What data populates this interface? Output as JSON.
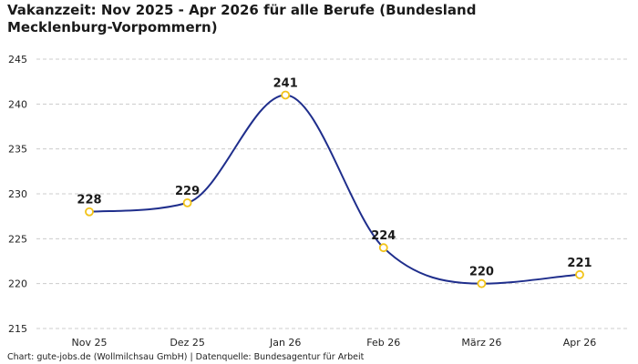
{
  "title": "Vakanzzeit: Nov 2025 - Apr 2026 für alle Berufe (Bundesland Mecklenburg-Vorpommern)",
  "footer": "Chart: gute-jobs.de (Wollmilchsau GmbH) | Datenquelle: Bundesagentur für Arbeit",
  "colors": {
    "line": "#1f2e8c",
    "marker_stroke": "#f2c318",
    "marker_fill": "#ffffff",
    "grid": "#cccccc"
  },
  "chart_data": {
    "type": "line",
    "title": "Vakanzzeit: Nov 2025 - Apr 2026 für alle Berufe (Bundesland Mecklenburg-Vorpommern)",
    "xlabel": "",
    "ylabel": "",
    "categories": [
      "Nov 25",
      "Dez 25",
      "Jan 26",
      "Feb 26",
      "März 26",
      "Apr 26"
    ],
    "series": [
      {
        "values": [
          228,
          229,
          241,
          224,
          220,
          221
        ]
      }
    ],
    "ylim": [
      215,
      245
    ],
    "yticks": [
      215,
      220,
      225,
      230,
      235,
      240,
      245
    ],
    "grid": true,
    "legend": "none",
    "smooth": true,
    "data_labels": true
  }
}
